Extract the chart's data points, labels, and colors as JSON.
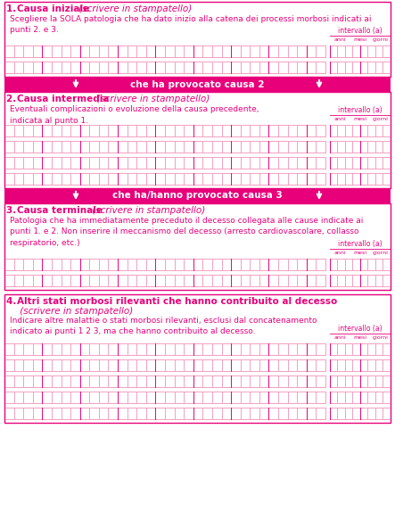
{
  "bg_color": "#ffffff",
  "pink_dark": "#e8007a",
  "pink_light": "#f4a0c0",
  "pink_border": "#e8007a",
  "s1_title_bold": "Causa iniziale",
  "s1_title_italic": " (scrivere in stampatello)",
  "s1_desc": "Scegliere la SOLA patologia che ha dato inizio alla catena dei processi morbosi indicati ai\npunti 2. e 3.",
  "s1_rows": 2,
  "arrow1_text": "che ha provocato causa 2",
  "s2_title_bold": "Causa intermedia",
  "s2_title_italic": " (scrivere in stampatello)",
  "s2_desc": "Eventuali complicazioni o evoluzione della causa precedente,\nindicata al punto 1.",
  "s2_rows": 4,
  "arrow2_text": "che ha/hanno provocato causa 3",
  "s3_title_bold": "Causa terminale",
  "s3_title_italic": " (scrivere in stampatello)",
  "s3_desc": "Patologia che ha immediatamente preceduto il decesso collegata alle cause indicate ai\npunti 1. e 2. Non inserire il meccanismo del decesso (arresto cardiovascolare, collasso\nrespiratorio, etc.)",
  "s3_rows": 2,
  "s4_title_bold": "Altri stati morbosi rilevanti che hanno contribuito al decesso",
  "s4_title_italic": " (scrivere in stampatello)",
  "s4_desc": "Indicare altre malattie o stati morbosi rilevanti, esclusi dal concatenamento\nindicato ai punti 1 2 3, ma che hanno contribuito al decesso.",
  "s4_rows": 5,
  "intervallo": "intervallo (a)",
  "anni": "anni",
  "mesi": "mesi",
  "giorni": "giorni"
}
